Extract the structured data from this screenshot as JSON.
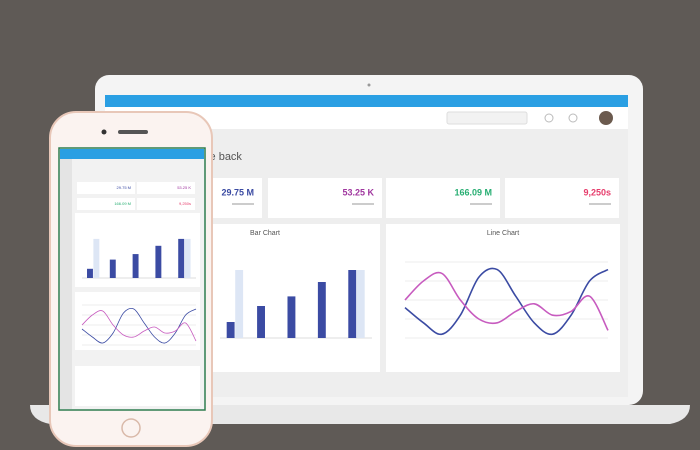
{
  "header": {
    "greeting": "Welcome back"
  },
  "stats": [
    {
      "value": "29.75 M",
      "color": "#3b4ba3"
    },
    {
      "value": "53.25 K",
      "color": "#a0379f"
    },
    {
      "value": "166.09 M",
      "color": "#27ae72"
    },
    {
      "value": "9,250s",
      "color": "#e63d6c"
    }
  ],
  "bar_chart": {
    "title": "Bar Chart",
    "ylim": [
      0,
      100
    ],
    "series": [
      {
        "color": "#3b4ba3",
        "values": [
          20,
          40,
          52,
          70,
          85
        ]
      },
      {
        "color": "#dde6f5",
        "values": [
          85,
          0,
          0,
          0,
          85
        ]
      }
    ]
  },
  "line_chart": {
    "title": "Line Chart",
    "ylim": [
      0,
      100
    ],
    "series": [
      {
        "color": "#3b4ba3",
        "values": [
          40,
          20,
          5,
          30,
          80,
          90,
          55,
          20,
          5,
          30,
          75,
          90
        ]
      },
      {
        "color": "#c75bbf",
        "values": [
          50,
          75,
          85,
          50,
          25,
          20,
          35,
          45,
          30,
          35,
          55,
          10
        ]
      }
    ]
  }
}
